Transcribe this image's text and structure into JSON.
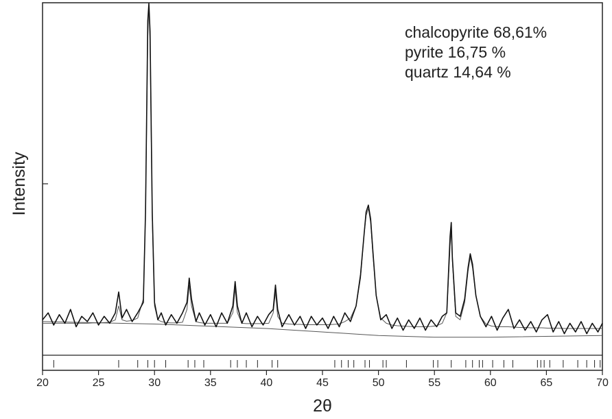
{
  "chart_data": {
    "type": "line",
    "annotations": [
      "chalcopyrite 68,61%",
      "pyrite 16,75 %",
      "quartz 14,64 %"
    ],
    "x_label": "2θ",
    "y_label": "Intensity",
    "xlim": [
      20,
      70
    ],
    "xticks": [
      20,
      25,
      30,
      35,
      40,
      45,
      50,
      55,
      60,
      65,
      70
    ],
    "ylim": [
      0,
      100
    ],
    "x": [
      20,
      20.5,
      21,
      21.5,
      22,
      22.5,
      23,
      23.5,
      24,
      24.5,
      25,
      25.5,
      26,
      26.5,
      26.8,
      27.1,
      27.5,
      28,
      28.5,
      29,
      29.2,
      29.4,
      29.5,
      29.6,
      29.8,
      30,
      30.3,
      30.6,
      31,
      31.5,
      32,
      32.5,
      32.9,
      33.1,
      33.3,
      33.7,
      34,
      34.5,
      35,
      35.5,
      36,
      36.5,
      37,
      37.2,
      37.4,
      37.8,
      38.2,
      38.7,
      39.2,
      39.7,
      40.2,
      40.6,
      40.8,
      41,
      41.4,
      42,
      42.5,
      43,
      43.5,
      44,
      44.5,
      45,
      45.5,
      46,
      46.5,
      47,
      47.5,
      48,
      48.4,
      48.7,
      48.9,
      49.1,
      49.3,
      49.5,
      49.8,
      50.2,
      50.7,
      51.2,
      51.7,
      52.2,
      52.7,
      53.2,
      53.7,
      54.2,
      54.7,
      55.2,
      55.7,
      56.1,
      56.4,
      56.5,
      56.6,
      56.9,
      57.3,
      57.7,
      58,
      58.2,
      58.4,
      58.7,
      59.1,
      59.6,
      60.1,
      60.6,
      61.1,
      61.6,
      62.1,
      62.6,
      63.1,
      63.6,
      64.1,
      64.6,
      65.1,
      65.6,
      66.1,
      66.6,
      67.1,
      67.6,
      68.1,
      68.6,
      69.1,
      69.6,
      70
    ],
    "series": [
      {
        "color": "#111111",
        "width": 1.6,
        "values": [
          9,
          11,
          7.5,
          10.5,
          8,
          12,
          7,
          10,
          8.5,
          11,
          7.5,
          10,
          8,
          11,
          17,
          9.5,
          12,
          8.5,
          11,
          14,
          40,
          95,
          100,
          92,
          40,
          14,
          9,
          11,
          7.5,
          10.5,
          8,
          11,
          14,
          21,
          15,
          8.5,
          11,
          7.5,
          10.5,
          7,
          11,
          8,
          13,
          20,
          13,
          8,
          11,
          7,
          10,
          7.5,
          10.5,
          12,
          19,
          12,
          7,
          10.5,
          7.5,
          10,
          6.5,
          10,
          7.5,
          9.5,
          6.5,
          10,
          7,
          11,
          8.5,
          13,
          22,
          33,
          40,
          42,
          38,
          29,
          16,
          9,
          10.5,
          6.5,
          9.5,
          6,
          9,
          6.5,
          9.5,
          6,
          9,
          7,
          10,
          11,
          33,
          37,
          27,
          11,
          10,
          15,
          24,
          28,
          25,
          16,
          10,
          7,
          10,
          6,
          9.5,
          12,
          6.5,
          9,
          6,
          8.5,
          5.5,
          9,
          10.5,
          5.5,
          8.5,
          5,
          8,
          5.5,
          8.5,
          5,
          8,
          5.5,
          8
        ]
      },
      {
        "color": "#555555",
        "width": 1,
        "values": [
          8,
          8,
          8,
          8,
          8,
          8,
          8,
          8,
          8,
          8.1,
          8.1,
          8.2,
          8.3,
          9,
          13,
          9,
          8.6,
          8.8,
          9.5,
          15,
          40,
          90,
          100,
          88,
          38,
          13,
          9,
          8.5,
          8.2,
          8.1,
          8.1,
          8.3,
          12,
          19,
          13,
          8.5,
          8.2,
          8,
          8,
          8,
          8,
          8,
          11,
          18,
          11,
          8,
          7.9,
          7.9,
          7.9,
          7.9,
          8,
          11,
          17,
          10,
          8,
          7.8,
          7.7,
          7.7,
          7.6,
          7.6,
          7.6,
          7.6,
          7.6,
          7.7,
          7.8,
          8.5,
          9.5,
          13,
          21,
          33,
          39,
          41,
          37,
          28,
          16,
          9.5,
          8,
          7.5,
          7.3,
          7.2,
          7.1,
          7,
          7,
          7,
          7.1,
          7.3,
          8,
          11,
          30,
          35,
          26,
          10,
          9,
          14,
          23,
          27,
          24,
          16,
          10,
          7.8,
          7.2,
          7,
          7,
          7,
          6.9,
          6.8,
          6.8,
          6.7,
          6.7,
          6.7,
          6.6,
          6.6,
          6.6,
          6.5,
          6.5,
          6.5,
          6.5,
          6.5,
          6.5,
          6.5,
          6.5
        ]
      },
      {
        "color": "#555555",
        "width": 1,
        "x": [
          20,
          30,
          40,
          50,
          55,
          60,
          70
        ],
        "values": [
          8.5,
          7.8,
          6.5,
          4.5,
          4,
          4,
          4.5
        ]
      }
    ],
    "reflections": [
      21,
      26.8,
      28.5,
      29.4,
      30,
      31,
      33,
      33.6,
      34.4,
      36.8,
      37.4,
      38.2,
      39.2,
      40.5,
      41,
      46.1,
      46.7,
      47.3,
      47.8,
      48.8,
      49.2,
      50.4,
      50.7,
      52.5,
      54.9,
      55.3,
      56.5,
      57.8,
      58.4,
      59,
      59.3,
      60.2,
      61.2,
      62,
      64.2,
      64.5,
      64.8,
      65.3,
      66.5,
      67.8,
      68.6,
      69.3,
      69.8
    ]
  }
}
